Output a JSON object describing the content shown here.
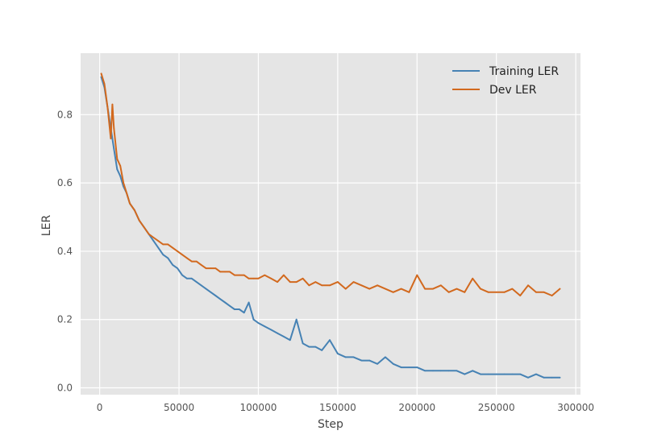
{
  "chart_data": {
    "type": "line",
    "title": "",
    "xlabel": "Step",
    "ylabel": "LER",
    "xlim": [
      -12000,
      303000
    ],
    "ylim": [
      -0.02,
      0.98
    ],
    "xticks": [
      0,
      50000,
      100000,
      150000,
      200000,
      250000,
      300000
    ],
    "yticks": [
      0.0,
      0.2,
      0.4,
      0.6,
      0.8
    ],
    "xtick_labels": [
      "0",
      "50000",
      "100000",
      "150000",
      "200000",
      "250000",
      "300000"
    ],
    "ytick_labels": [
      "0.0",
      "0.2",
      "0.4",
      "0.6",
      "0.8"
    ],
    "grid": true,
    "legend_position": "top-right",
    "series": [
      {
        "name": "Training LER",
        "color": "#4682b4",
        "x": [
          1000,
          3000,
          5000,
          7000,
          9000,
          11000,
          13000,
          15000,
          17000,
          19000,
          22000,
          25000,
          28000,
          31000,
          34000,
          37000,
          40000,
          43000,
          46000,
          49000,
          52000,
          55000,
          58000,
          61000,
          64000,
          67000,
          70000,
          73000,
          76000,
          79000,
          82000,
          85000,
          88000,
          91000,
          94000,
          97000,
          100000,
          104000,
          108000,
          112000,
          116000,
          120000,
          124000,
          128000,
          132000,
          136000,
          140000,
          145000,
          150000,
          155000,
          160000,
          165000,
          170000,
          175000,
          180000,
          185000,
          190000,
          195000,
          200000,
          205000,
          210000,
          215000,
          220000,
          225000,
          230000,
          235000,
          240000,
          245000,
          250000,
          255000,
          260000,
          265000,
          270000,
          275000,
          280000,
          285000,
          290000
        ],
        "y": [
          0.91,
          0.88,
          0.82,
          0.76,
          0.7,
          0.64,
          0.62,
          0.59,
          0.57,
          0.54,
          0.52,
          0.49,
          0.47,
          0.45,
          0.43,
          0.41,
          0.39,
          0.38,
          0.36,
          0.35,
          0.33,
          0.32,
          0.32,
          0.31,
          0.3,
          0.29,
          0.28,
          0.27,
          0.26,
          0.25,
          0.24,
          0.23,
          0.23,
          0.22,
          0.25,
          0.2,
          0.19,
          0.18,
          0.17,
          0.16,
          0.15,
          0.14,
          0.2,
          0.13,
          0.12,
          0.12,
          0.11,
          0.14,
          0.1,
          0.09,
          0.09,
          0.08,
          0.08,
          0.07,
          0.09,
          0.07,
          0.06,
          0.06,
          0.06,
          0.05,
          0.05,
          0.05,
          0.05,
          0.05,
          0.04,
          0.05,
          0.04,
          0.04,
          0.04,
          0.04,
          0.04,
          0.04,
          0.03,
          0.04,
          0.03,
          0.03,
          0.03
        ]
      },
      {
        "name": "Dev LER",
        "color": "#d2691e",
        "x": [
          1000,
          3000,
          5000,
          7000,
          8000,
          9000,
          11000,
          13000,
          15000,
          17000,
          19000,
          22000,
          25000,
          28000,
          31000,
          34000,
          37000,
          40000,
          43000,
          46000,
          49000,
          52000,
          55000,
          58000,
          61000,
          64000,
          67000,
          70000,
          73000,
          76000,
          79000,
          82000,
          85000,
          88000,
          91000,
          94000,
          97000,
          100000,
          104000,
          108000,
          112000,
          116000,
          120000,
          124000,
          128000,
          132000,
          136000,
          140000,
          145000,
          150000,
          155000,
          160000,
          165000,
          170000,
          175000,
          180000,
          185000,
          190000,
          195000,
          200000,
          205000,
          210000,
          215000,
          220000,
          225000,
          230000,
          235000,
          240000,
          245000,
          250000,
          255000,
          260000,
          265000,
          270000,
          275000,
          280000,
          285000,
          290000
        ],
        "y": [
          0.92,
          0.89,
          0.82,
          0.73,
          0.83,
          0.76,
          0.67,
          0.65,
          0.6,
          0.57,
          0.54,
          0.52,
          0.49,
          0.47,
          0.45,
          0.44,
          0.43,
          0.42,
          0.42,
          0.41,
          0.4,
          0.39,
          0.38,
          0.37,
          0.37,
          0.36,
          0.35,
          0.35,
          0.35,
          0.34,
          0.34,
          0.34,
          0.33,
          0.33,
          0.33,
          0.32,
          0.32,
          0.32,
          0.33,
          0.32,
          0.31,
          0.33,
          0.31,
          0.31,
          0.32,
          0.3,
          0.31,
          0.3,
          0.3,
          0.31,
          0.29,
          0.31,
          0.3,
          0.29,
          0.3,
          0.29,
          0.28,
          0.29,
          0.28,
          0.33,
          0.29,
          0.29,
          0.3,
          0.28,
          0.29,
          0.28,
          0.32,
          0.29,
          0.28,
          0.28,
          0.28,
          0.29,
          0.27,
          0.3,
          0.28,
          0.28,
          0.27,
          0.29
        ]
      }
    ]
  }
}
